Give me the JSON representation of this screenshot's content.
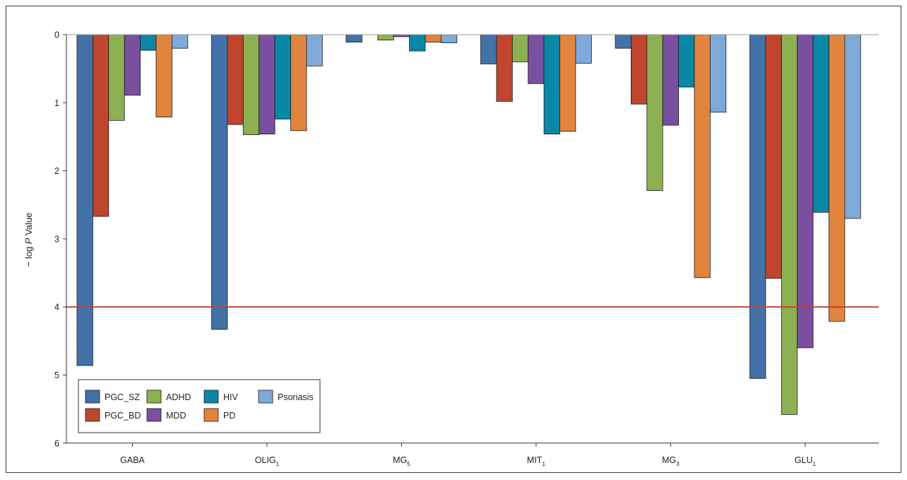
{
  "chart_data": {
    "type": "bar",
    "orientation": "vertical",
    "y_axis_inverted": true,
    "ylabel": {
      "prefix": "− log ",
      "italic": "P",
      "suffix": " Value"
    },
    "ylim": [
      0,
      6
    ],
    "yticks": [
      "0",
      "1",
      "2",
      "3",
      "4",
      "5",
      "6"
    ],
    "categories": [
      {
        "base": "GABA",
        "sub": ""
      },
      {
        "base": "OLIG",
        "sub": "1"
      },
      {
        "base": "MG",
        "sub": "5"
      },
      {
        "base": "MIT",
        "sub": "1"
      },
      {
        "base": "MG",
        "sub": "3"
      },
      {
        "base": "GLU",
        "sub": "1"
      }
    ],
    "series": [
      {
        "name": "PGC_SZ",
        "color": "#4272a8",
        "values": [
          4.86,
          4.33,
          0.11,
          0.43,
          0.2,
          5.05
        ]
      },
      {
        "name": "PGC_BD",
        "color": "#c0452f",
        "values": [
          2.67,
          1.32,
          null,
          0.98,
          1.02,
          3.58
        ]
      },
      {
        "name": "ADHD",
        "color": "#8db052",
        "values": [
          1.26,
          1.47,
          0.08,
          0.4,
          2.29,
          5.58
        ]
      },
      {
        "name": "MDD",
        "color": "#7a4fa0",
        "values": [
          0.89,
          1.46,
          0.03,
          0.72,
          1.33,
          4.6
        ]
      },
      {
        "name": "HIV",
        "color": "#0a87a6",
        "values": [
          0.23,
          1.24,
          0.24,
          1.46,
          0.77,
          2.61
        ]
      },
      {
        "name": "PD",
        "color": "#e0843e",
        "values": [
          1.21,
          1.41,
          0.11,
          1.42,
          3.57,
          4.21
        ]
      },
      {
        "name": "Psoriasis",
        "color": "#7ea9d8",
        "values": [
          0.2,
          0.46,
          0.12,
          0.42,
          1.14,
          2.7
        ]
      }
    ],
    "threshold": {
      "value": 4,
      "color": "#c0452f"
    },
    "legend": {
      "position": "bottom-left",
      "columns": 4
    },
    "grid": false
  }
}
